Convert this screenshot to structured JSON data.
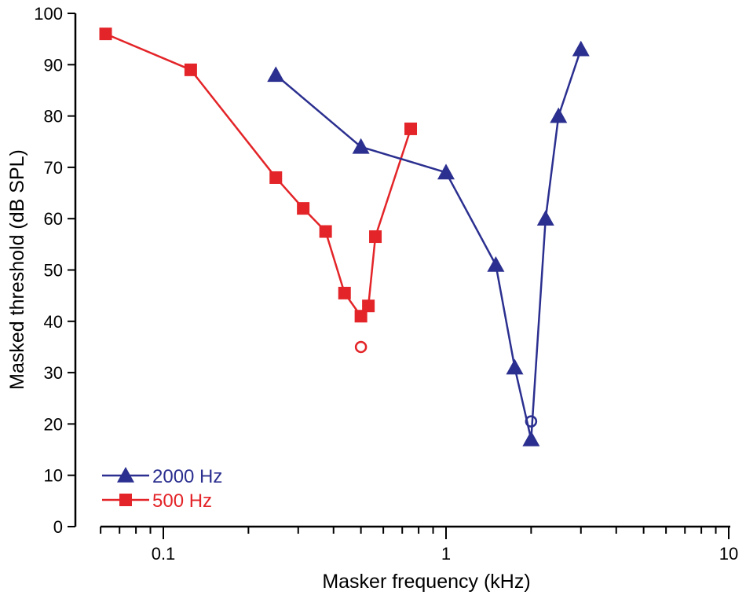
{
  "chart_data": {
    "type": "line",
    "xscale": "log",
    "xlabel": "Masker frequency (kHz)",
    "ylabel": "Masked threshold (dB SPL)",
    "xlim": [
      0.05,
      10
    ],
    "ylim": [
      0,
      100
    ],
    "x_tick_labels": [
      "0.1",
      "1",
      "10"
    ],
    "y_tick_labels": [
      "0",
      "10",
      "20",
      "30",
      "40",
      "50",
      "60",
      "70",
      "80",
      "90",
      "100"
    ],
    "grid": false,
    "legend_position": "bottom-left",
    "series": [
      {
        "name": "2000 Hz",
        "color": "#2b2f8f",
        "marker": "triangle",
        "x": [
          0.25,
          0.5,
          1.0,
          1.5,
          1.75,
          2.0,
          2.25,
          2.5,
          3.0
        ],
        "y": [
          88,
          74,
          69,
          51,
          31,
          17,
          60,
          80,
          93
        ],
        "open_marker": {
          "x": 2.0,
          "y": 20.5
        }
      },
      {
        "name": "500 Hz",
        "color": "#e32428",
        "marker": "square",
        "x": [
          0.0625,
          0.125,
          0.25,
          0.3125,
          0.375,
          0.4375,
          0.5,
          0.5313,
          0.5625,
          0.75
        ],
        "y": [
          96,
          89,
          68,
          62,
          57.5,
          45.5,
          41,
          43,
          56.5,
          77.5
        ],
        "open_marker": {
          "x": 0.5,
          "y": 35
        }
      }
    ]
  }
}
